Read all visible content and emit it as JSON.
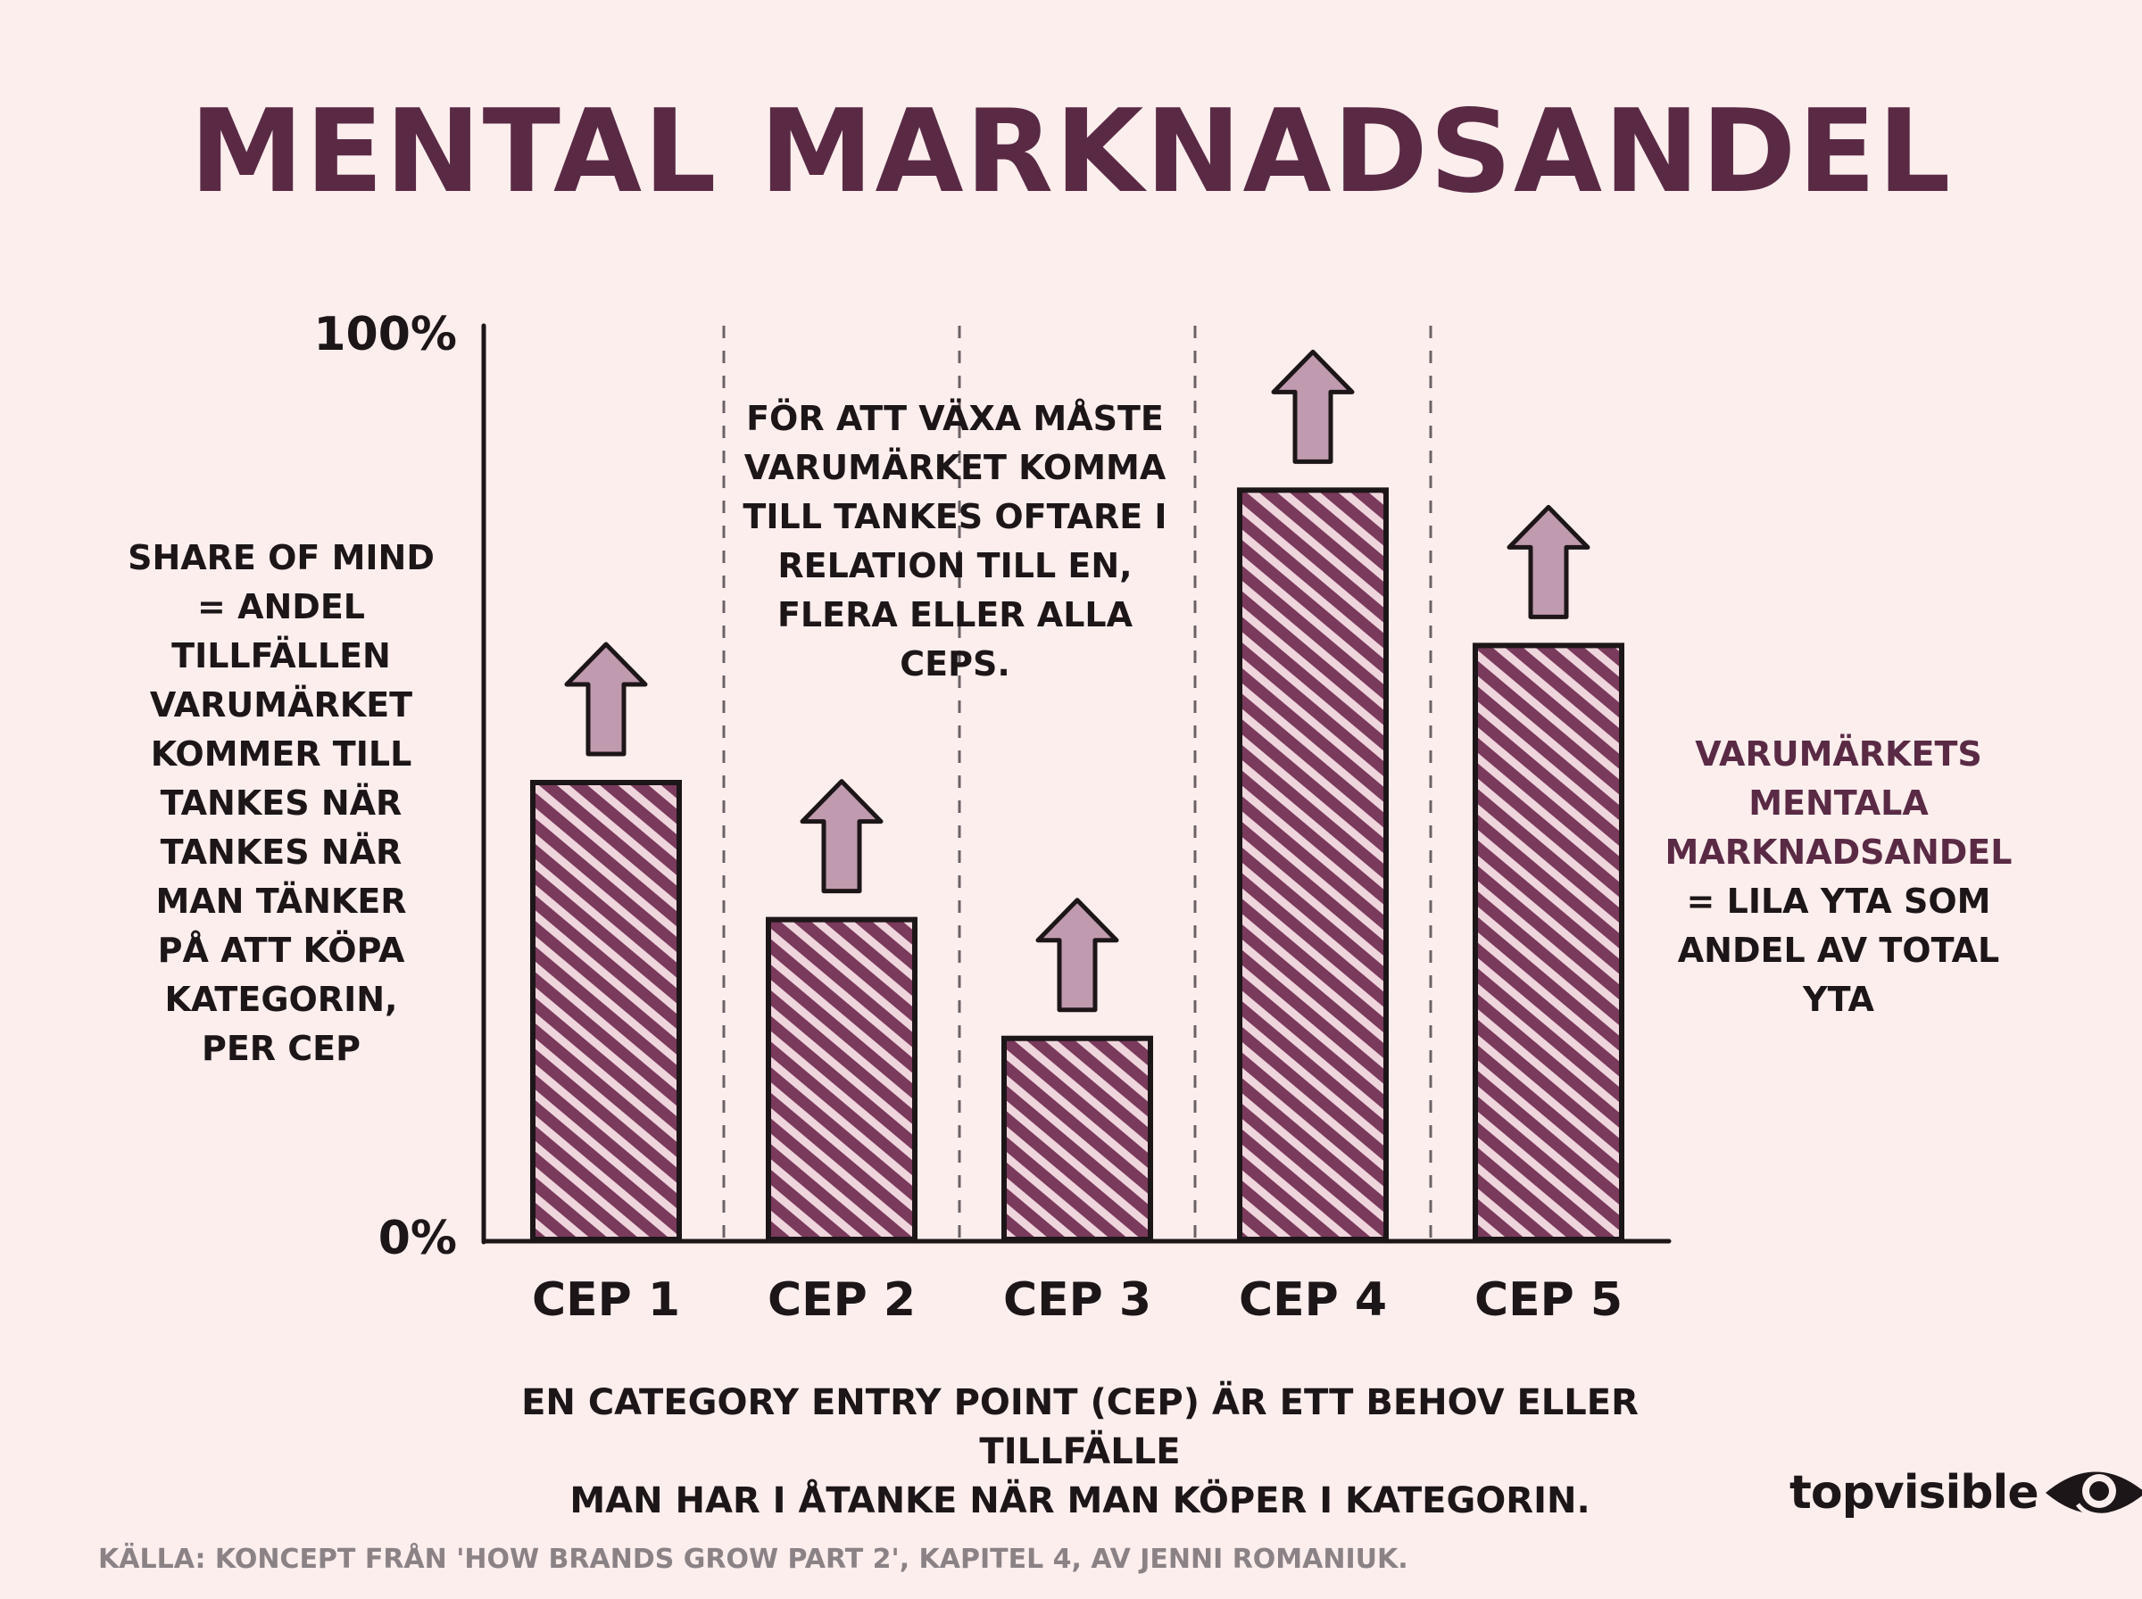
{
  "title": "MENTAL MARKNADSANDEL",
  "notes": {
    "left": [
      "SHARE OF MIND",
      "= ANDEL",
      "TILLFÄLLEN",
      "VARUMÄRKET",
      "KOMMER TILL",
      "TANKES NÄR",
      "TANKES NÄR",
      "MAN TÄNKER",
      "PÅ ATT KÖPA",
      "KATEGORIN,",
      "PER CEP"
    ],
    "top": [
      "FÖR ATT VÄXA MÅSTE",
      "VARUMÄRKET KOMMA",
      "TILL TANKES OFTARE I",
      "RELATION TILL EN,",
      "FLERA ELLER ALLA",
      "CEPS."
    ],
    "right_accent": [
      "VARUMÄRKETS",
      "MENTALA",
      "MARKNADSANDEL"
    ],
    "right_plain": [
      "= LILA YTA SOM",
      "ANDEL AV TOTAL",
      "YTA"
    ]
  },
  "footnote": [
    "EN CATEGORY ENTRY POINT (CEP) ÄR ETT BEHOV ELLER TILLFÄLLE",
    "MAN HAR I ÅTANKE NÄR MAN KÖPER I KATEGORIN."
  ],
  "source": "KÄLLA: KONCEPT FRÅN 'HOW BRANDS GROW PART 2', KAPITEL 4, AV JENNI ROMANIUK.",
  "logo": {
    "text": "topvisible",
    "icon": "eye-icon"
  },
  "colors": {
    "background": "#fbeeed",
    "accent": "#5a2a45",
    "bar_fill": "#7a3a5c",
    "arrow_fill": "#c09aae",
    "ink": "#1d1618",
    "muted": "#8b8286"
  },
  "chart_data": {
    "type": "bar",
    "categories": [
      "CEP 1",
      "CEP 2",
      "CEP 3",
      "CEP 4",
      "CEP 5"
    ],
    "values": [
      50,
      35,
      22,
      82,
      65
    ],
    "ylim": [
      0,
      100
    ],
    "ytick_labels": [
      "0%",
      "100%"
    ],
    "growth_arrows": true,
    "category_separators": "dashed",
    "bar_pattern": "hatched"
  }
}
